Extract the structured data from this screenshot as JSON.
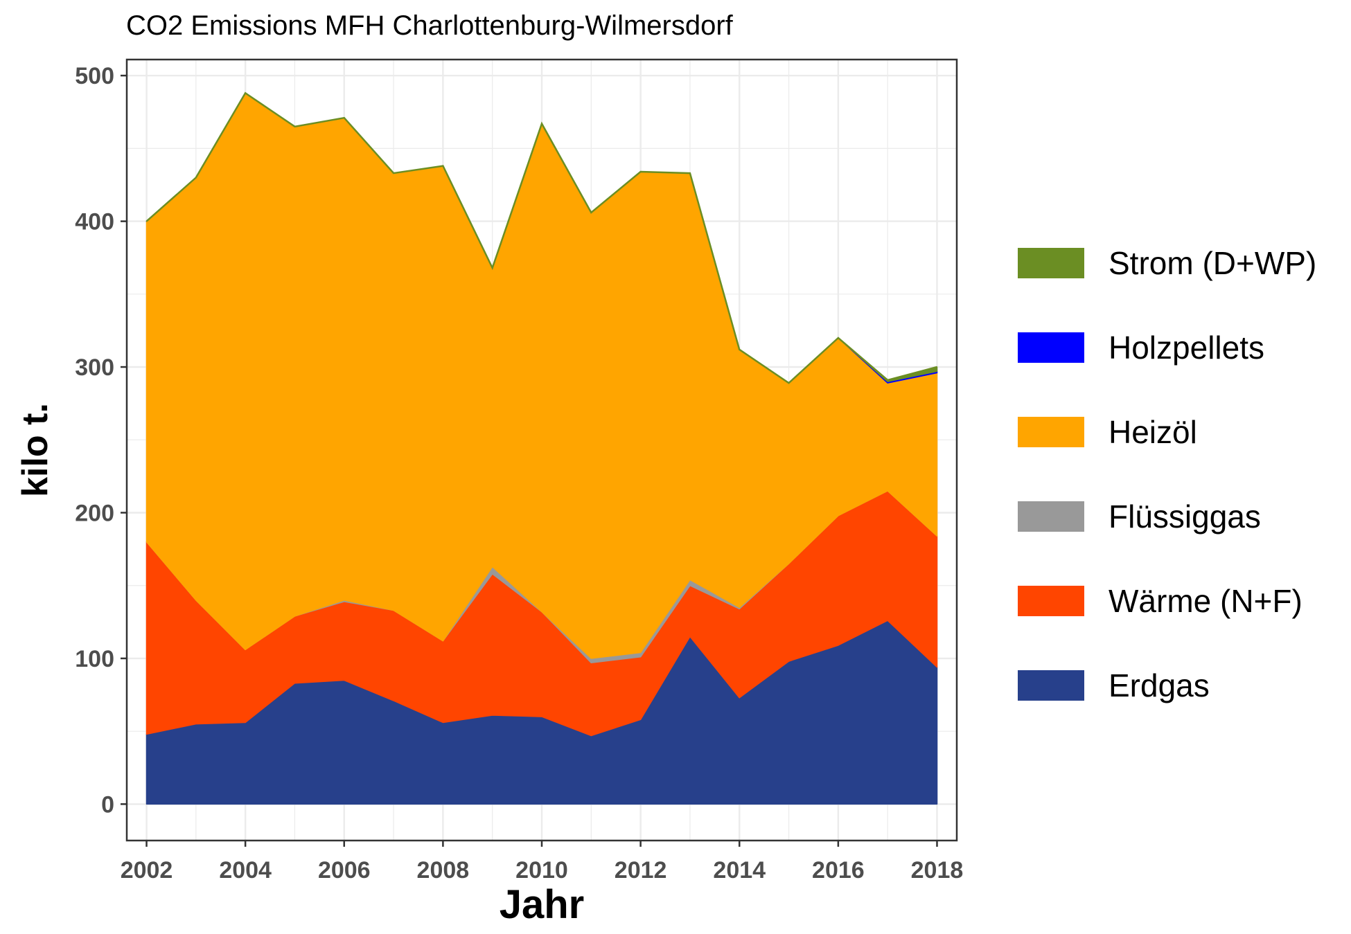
{
  "chart_data": {
    "type": "area",
    "stacked": true,
    "title": "CO2 Emissions MFH Charlottenburg-Wilmersdorf",
    "xlabel": "Jahr",
    "ylabel": "kilo t.",
    "x": [
      2002,
      2003,
      2004,
      2005,
      2006,
      2007,
      2008,
      2009,
      2010,
      2011,
      2012,
      2013,
      2014,
      2015,
      2016,
      2017,
      2018
    ],
    "xticks": [
      2002,
      2004,
      2006,
      2008,
      2010,
      2012,
      2014,
      2016,
      2018
    ],
    "xtick_labels": [
      "2002",
      "2004",
      "2006",
      "2008",
      "2010",
      "2012",
      "2014",
      "2016",
      "2018"
    ],
    "yticks": [
      0,
      100,
      200,
      300,
      400,
      500
    ],
    "ytick_labels": [
      "0",
      "100",
      "200",
      "300",
      "400",
      "500"
    ],
    "xlim": [
      2001.6,
      2018.4
    ],
    "ylim": [
      -25,
      511
    ],
    "grid": true,
    "legend_position": "right",
    "series": [
      {
        "name": "Erdgas",
        "color": "#27408b",
        "values": [
          48,
          55,
          56,
          83,
          85,
          71,
          56,
          61,
          60,
          47,
          58,
          115,
          73,
          98,
          109,
          126,
          94
        ]
      },
      {
        "name": "Wärme (N+F)",
        "color": "#ff4500",
        "values": [
          132,
          85,
          50,
          46,
          54,
          62,
          56,
          97,
          72,
          50,
          43,
          35,
          61,
          67,
          89,
          89,
          90
        ]
      },
      {
        "name": "Flüssiggas",
        "color": "#999999",
        "values": [
          0,
          0,
          0,
          0,
          1,
          0,
          0,
          5,
          0,
          3,
          3,
          4,
          1,
          0,
          0,
          0,
          0
        ]
      },
      {
        "name": "Heizöl",
        "color": "#ffa500",
        "values": [
          220,
          290,
          382,
          336,
          331,
          300,
          326,
          205,
          335,
          306,
          330,
          279,
          177,
          124,
          122,
          74,
          112
        ]
      },
      {
        "name": "Holzpellets",
        "color": "#0000ff",
        "values": [
          0,
          0,
          0,
          0,
          0,
          0,
          0,
          0,
          0,
          0,
          0,
          0,
          0,
          0,
          0,
          1,
          1
        ]
      },
      {
        "name": "Strom (D+WP)",
        "color": "#6b8e23",
        "values": [
          0,
          0,
          0,
          0,
          0,
          0,
          0,
          0,
          0,
          0,
          0,
          0,
          0,
          0,
          0,
          1,
          3
        ]
      }
    ],
    "legend_order": [
      "Strom (D+WP)",
      "Holzpellets",
      "Heizöl",
      "Flüssiggas",
      "Wärme (N+F)",
      "Erdgas"
    ]
  }
}
